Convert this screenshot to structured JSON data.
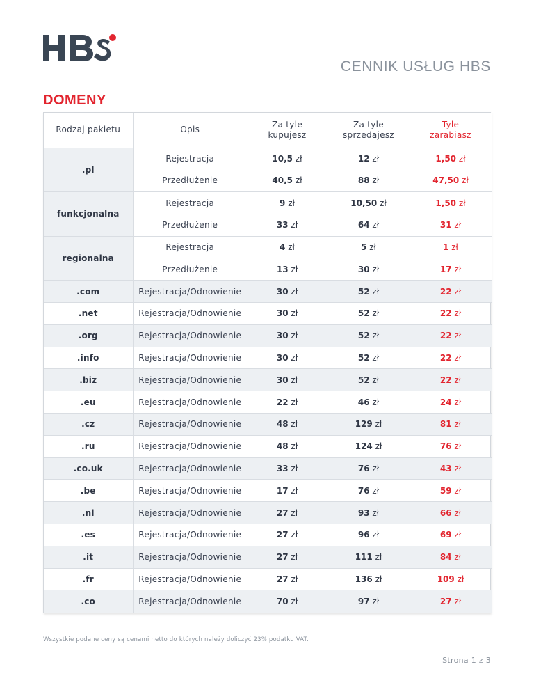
{
  "header": {
    "logo_text": "HBS",
    "doc_title": "CENNIK USŁUG HBS"
  },
  "section_title": "DOMENY",
  "table": {
    "headers": {
      "type": "Rodzaj pakietu",
      "desc": "Opis",
      "buy_l1": "Za tyle",
      "buy_l2": "kupujesz",
      "sell_l1": "Za tyle",
      "sell_l2": "sprzedajesz",
      "earn_l1": "Tyle",
      "earn_l2": "zarabiasz"
    },
    "currency": "zł",
    "groups": [
      {
        "name": ".pl",
        "rows": [
          {
            "desc": "Rejestracja",
            "buy": "10,5",
            "sell": "12",
            "earn": "1,50"
          },
          {
            "desc": "Przedłużenie",
            "buy": "40,5",
            "sell": "88",
            "earn": "47,50"
          }
        ]
      },
      {
        "name": "funkcjonalna",
        "rows": [
          {
            "desc": "Rejestracja",
            "buy": "9",
            "sell": "10,50",
            "earn": "1,50"
          },
          {
            "desc": "Przedłużenie",
            "buy": "33",
            "sell": "64",
            "earn": "31"
          }
        ]
      },
      {
        "name": "regionalna",
        "rows": [
          {
            "desc": "Rejestracja",
            "buy": "4",
            "sell": "5",
            "earn": "1"
          },
          {
            "desc": "Przedłużenie",
            "buy": "13",
            "sell": "30",
            "earn": "17"
          }
        ]
      }
    ],
    "rows": [
      {
        "name": ".com",
        "desc": "Rejestracja/Odnowienie",
        "buy": "30",
        "sell": "52",
        "earn": "22"
      },
      {
        "name": ".net",
        "desc": "Rejestracja/Odnowienie",
        "buy": "30",
        "sell": "52",
        "earn": "22"
      },
      {
        "name": ".org",
        "desc": "Rejestracja/Odnowienie",
        "buy": "30",
        "sell": "52",
        "earn": "22"
      },
      {
        "name": ".info",
        "desc": "Rejestracja/Odnowienie",
        "buy": "30",
        "sell": "52",
        "earn": "22"
      },
      {
        "name": ".biz",
        "desc": "Rejestracja/Odnowienie",
        "buy": "30",
        "sell": "52",
        "earn": "22"
      },
      {
        "name": ".eu",
        "desc": "Rejestracja/Odnowienie",
        "buy": "22",
        "sell": "46",
        "earn": "24"
      },
      {
        "name": ".cz",
        "desc": "Rejestracja/Odnowienie",
        "buy": "48",
        "sell": "129",
        "earn": "81"
      },
      {
        "name": ".ru",
        "desc": "Rejestracja/Odnowienie",
        "buy": "48",
        "sell": "124",
        "earn": "76"
      },
      {
        "name": ".co.uk",
        "desc": "Rejestracja/Odnowienie",
        "buy": "33",
        "sell": "76",
        "earn": "43"
      },
      {
        "name": ".be",
        "desc": "Rejestracja/Odnowienie",
        "buy": "17",
        "sell": "76",
        "earn": "59"
      },
      {
        "name": ".nl",
        "desc": "Rejestracja/Odnowienie",
        "buy": "27",
        "sell": "93",
        "earn": "66"
      },
      {
        "name": ".es",
        "desc": "Rejestracja/Odnowienie",
        "buy": "27",
        "sell": "96",
        "earn": "69"
      },
      {
        "name": ".it",
        "desc": "Rejestracja/Odnowienie",
        "buy": "27",
        "sell": "111",
        "earn": "84"
      },
      {
        "name": ".fr",
        "desc": "Rejestracja/Odnowienie",
        "buy": "27",
        "sell": "136",
        "earn": "109"
      },
      {
        "name": ".co",
        "desc": "Rejestracja/Odnowienie",
        "buy": "70",
        "sell": "97",
        "earn": "27"
      }
    ]
  },
  "footnote": "Wszystkie podane ceny są cenami netto do których należy doliczyć 23% podatku VAT.",
  "page_number": "Strona 1 z 3",
  "colors": {
    "accent_red": "#e2252f",
    "logo_dark": "#3a4654",
    "row_shade": "#edf0f3",
    "muted_text": "#8a929c"
  }
}
